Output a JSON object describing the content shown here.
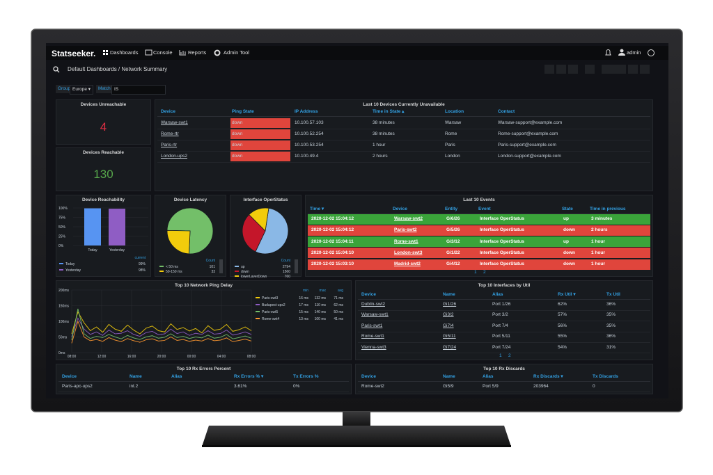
{
  "nav": {
    "logo": "Statseeker.",
    "items": [
      "Dashboards",
      "Console",
      "Reports",
      "Admin Tool"
    ],
    "user": "admin"
  },
  "breadcrumb": "Default Dashboards / Network Summary",
  "filter": {
    "group_label": "Group",
    "group_value": "Europe ▾",
    "match_label": "Match",
    "match_value": "IS"
  },
  "unreachable": {
    "title": "Devices Unreachable",
    "value": "4"
  },
  "reachable": {
    "title": "Devices Reachable",
    "value": "130"
  },
  "unavailable": {
    "title": "Last 10 Devices Currently Unavailable",
    "columns": [
      "Device",
      "Ping State",
      "IP Address",
      "Time in State ▴",
      "Location",
      "Contact"
    ],
    "rows": [
      [
        "Warsaw-swt1",
        "down",
        "10.100.57.103",
        "38 minutes",
        "Warsaw",
        "Warsaw-support@example.com"
      ],
      [
        "Rome-rtr",
        "down",
        "10.100.52.254",
        "38 minutes",
        "Rome",
        "Rome-support@example.com"
      ],
      [
        "Paris-rtr",
        "down",
        "10.100.53.254",
        "1 hour",
        "Paris",
        "Paris-support@example.com"
      ],
      [
        "London-ups2",
        "down",
        "10.100.49.4",
        "2 hours",
        "London",
        "London-support@example.com"
      ]
    ]
  },
  "reachability": {
    "type": "bar",
    "title": "Device Reachability",
    "categories": [
      "Today",
      "Yesterday"
    ],
    "values": [
      99,
      98
    ],
    "value_labels": [
      "99%",
      "98%"
    ],
    "colors": [
      "#5794f2",
      "#8f5dc4"
    ],
    "legend_header": "current",
    "ylim": [
      0,
      100
    ],
    "yticks": [
      {
        "value": 0,
        "label": "0%"
      },
      {
        "value": 25,
        "label": "25%"
      },
      {
        "value": 50,
        "label": "50%"
      },
      {
        "value": 75,
        "label": "75%"
      },
      {
        "value": 100,
        "label": "100%"
      }
    ]
  },
  "latency": {
    "type": "pie",
    "title": "Device Latency",
    "legend_header": "Count",
    "labels": [
      "< 50 ms",
      "50-150 ms"
    ],
    "values": [
      101,
      33
    ],
    "colors": [
      "#73bf69",
      "#f2cc0c"
    ]
  },
  "operstatus": {
    "type": "pie",
    "title": "Interface OperStatus",
    "legend_header": "Count",
    "labels": [
      "up",
      "down",
      "lowerLayerDown"
    ],
    "values": [
      2794,
      1560,
      760
    ],
    "colors": [
      "#8ab8e6",
      "#c4162a",
      "#f2cc0c"
    ]
  },
  "events": {
    "title": "Last 10 Events",
    "columns": [
      "Time ▾",
      "Device",
      "Entity",
      "Event",
      "State",
      "Time in previous"
    ],
    "rows": [
      [
        "2020-12-02 15:04:12",
        "Warsaw-swt2",
        "Gi6/26",
        "Interface OperStatus",
        "up",
        "3 minutes"
      ],
      [
        "2020-12-02 15:04:12",
        "Paris-swt2",
        "Gi5/26",
        "Interface OperStatus",
        "down",
        "2 hours"
      ],
      [
        "2020-12-02 15:04:11",
        "Rome-swt1",
        "Gi3/12",
        "Interface OperStatus",
        "up",
        "1 hour"
      ],
      [
        "2020-12-02 15:04:10",
        "London-swt3",
        "Gi1/22",
        "Interface OperStatus",
        "down",
        "1 hour"
      ],
      [
        "2020-12-02 15:03:10",
        "Madrid-swt2",
        "Gi4/12",
        "Interface OperStatus",
        "down",
        "1 hour"
      ]
    ],
    "pages": [
      "1",
      "2"
    ]
  },
  "ping": {
    "type": "line",
    "title": "Top 10 Network Ping Delay",
    "xtick_labels": [
      "08:00",
      "12:00",
      "16:00",
      "20:00",
      "00:00",
      "04:00",
      "08:00"
    ],
    "ylim": [
      0,
      200
    ],
    "yticks": [
      {
        "value": 0,
        "label": "0ms"
      },
      {
        "value": 50,
        "label": "50ms"
      },
      {
        "value": 100,
        "label": "100ms"
      },
      {
        "value": 150,
        "label": "150ms"
      },
      {
        "value": 200,
        "label": "200ms"
      }
    ],
    "columns": [
      "min",
      "max",
      "avg"
    ],
    "series": [
      {
        "name": "Paris-swt3",
        "color": "#f2cc0c",
        "stats": [
          "16 ms",
          "132 ms",
          "71 ms"
        ],
        "values": [
          60,
          130,
          95,
          70,
          82,
          65,
          90,
          75,
          68,
          88,
          72,
          60,
          78,
          85,
          70,
          66,
          92,
          74,
          80,
          69,
          77,
          63,
          86,
          71,
          75,
          90,
          68,
          73,
          82,
          70
        ]
      },
      {
        "name": "Budapest-ups2",
        "color": "#8f5dc4",
        "stats": [
          "17 ms",
          "110 ms",
          "62 ms"
        ],
        "values": [
          50,
          110,
          75,
          58,
          66,
          55,
          72,
          60,
          62,
          70,
          58,
          52,
          64,
          68,
          57,
          60,
          75,
          61,
          66,
          55,
          62,
          58,
          70,
          59,
          61,
          72,
          56,
          60,
          66,
          58
        ]
      },
      {
        "name": "Paris-swt5",
        "color": "#73bf69",
        "stats": [
          "15 ms",
          "140 ms",
          "50 ms"
        ],
        "values": [
          40,
          140,
          60,
          45,
          52,
          48,
          58,
          50,
          44,
          55,
          47,
          42,
          50,
          54,
          46,
          49,
          60,
          48,
          52,
          45,
          50,
          47,
          56,
          46,
          49,
          58,
          44,
          48,
          53,
          46
        ]
      },
      {
        "name": "Rome-swt4",
        "color": "#ff9830",
        "stats": [
          "13 ms",
          "100 ms",
          "41 ms"
        ],
        "values": [
          30,
          100,
          50,
          38,
          42,
          36,
          48,
          40,
          35,
          45,
          38,
          33,
          41,
          44,
          37,
          39,
          50,
          39,
          42,
          36,
          40,
          37,
          45,
          38,
          40,
          47,
          35,
          39,
          43,
          37
        ]
      }
    ]
  },
  "util": {
    "title": "Top 10 Interfaces by Util",
    "columns": [
      "Device",
      "Name",
      "Alias",
      "Rx Util ▾",
      "Tx Util"
    ],
    "rows": [
      [
        "Dublin-swt2",
        "Gi1/26",
        "Port 1/26",
        "62%",
        "36%"
      ],
      [
        "Warsaw-swt1",
        "Gi3/2",
        "Port 3/2",
        "57%",
        "35%"
      ],
      [
        "Paris-swt1",
        "Gi7/4",
        "Port 7/4",
        "56%",
        "35%"
      ],
      [
        "Rome-swt1",
        "Gi5/11",
        "Port 5/11",
        "55%",
        "36%"
      ],
      [
        "Vienna-swt3",
        "Gi7/24",
        "Port 7/24",
        "54%",
        "31%"
      ]
    ],
    "pages": [
      "1",
      "2"
    ]
  },
  "rx_errors": {
    "title": "Top 10 Rx Errors Percent",
    "columns": [
      "Device",
      "Name",
      "Alias",
      "Rx Errors % ▾",
      "Tx Errors %"
    ],
    "rows": [
      [
        "Paris-apc-ups2",
        "int.2"
      ]
    ],
    "row_values": [
      [
        "3.61%",
        "0%"
      ]
    ]
  },
  "discards": {
    "title": "Top 10 Rx Discards",
    "columns": [
      "Device",
      "Name",
      "Alias",
      "Rx Discards ▾",
      "Tx Discards"
    ],
    "rows": [
      [
        "Rome-swt2",
        "Gi5/9",
        "Port 5/9",
        "203964",
        "0"
      ]
    ]
  }
}
